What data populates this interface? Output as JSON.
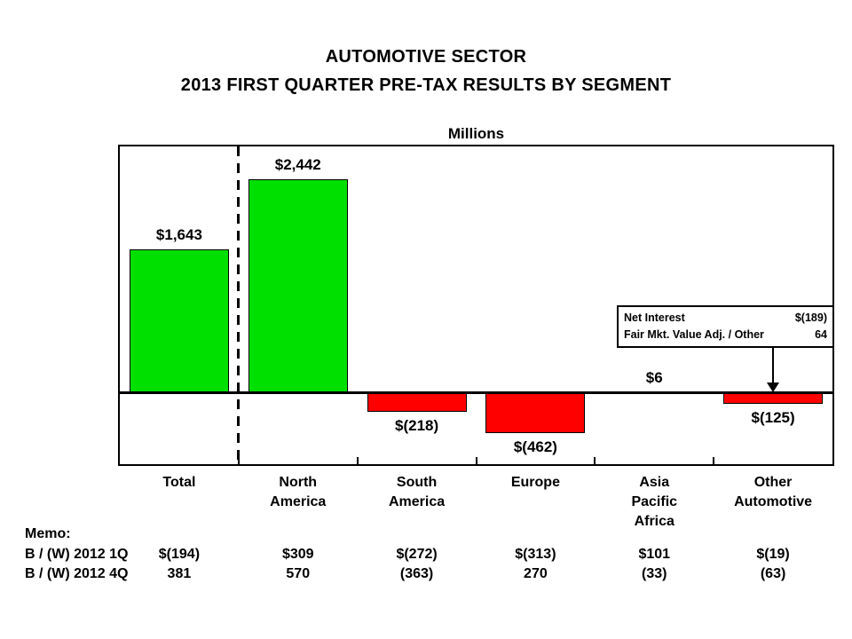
{
  "slide": {
    "title_line1": "AUTOMOTIVE SECTOR",
    "title_line2": "2013 FIRST QUARTER PRE-TAX RESULTS BY SEGMENT",
    "axis_unit_label": "Millions"
  },
  "chart_data": {
    "type": "bar",
    "title": "AUTOMOTIVE SECTOR — 2013 FIRST QUARTER PRE-TAX RESULTS BY SEGMENT",
    "xlabel": "",
    "ylabel": "Millions",
    "categories": [
      "Total",
      "North America",
      "South America",
      "Europe",
      "Asia Pacific Africa",
      "Other Automotive"
    ],
    "category_lines": [
      [
        "Total"
      ],
      [
        "North",
        "America"
      ],
      [
        "South",
        "America"
      ],
      [
        "Europe"
      ],
      [
        "Asia",
        "Pacific",
        "Africa"
      ],
      [
        "Other",
        "Automotive"
      ]
    ],
    "values": [
      1643,
      2442,
      -218,
      -462,
      6,
      -125
    ],
    "value_labels": [
      "$1,643",
      "$2,442",
      "$(218)",
      "$(462)",
      "$6",
      "$(125)"
    ],
    "bar_colors": [
      "#00E000",
      "#00E000",
      "#FF0000",
      "#FF0000",
      "#00E000",
      "#FF0000"
    ],
    "positive_color": "#00E000",
    "negative_color": "#FF0000",
    "ylim": [
      -820,
      2820
    ],
    "grid": false,
    "legend": false,
    "separator_after_category": "Total"
  },
  "callout": {
    "rows": [
      {
        "label": "Net Interest",
        "value": "$(189)"
      },
      {
        "label": "Fair Mkt. Value Adj. / Other",
        "value": "64"
      }
    ],
    "arrow_target_category": "Other Automotive"
  },
  "memo": {
    "heading": "Memo:",
    "rows": [
      {
        "label": "B / (W) 2012 1Q",
        "values": [
          "$(194)",
          "$309",
          "$(272)",
          "$(313)",
          "$101",
          "$(19)"
        ]
      },
      {
        "label": "B / (W) 2012 4Q",
        "values": [
          "381",
          "570",
          "(363)",
          "270",
          "(33)",
          "(63)"
        ]
      }
    ]
  }
}
